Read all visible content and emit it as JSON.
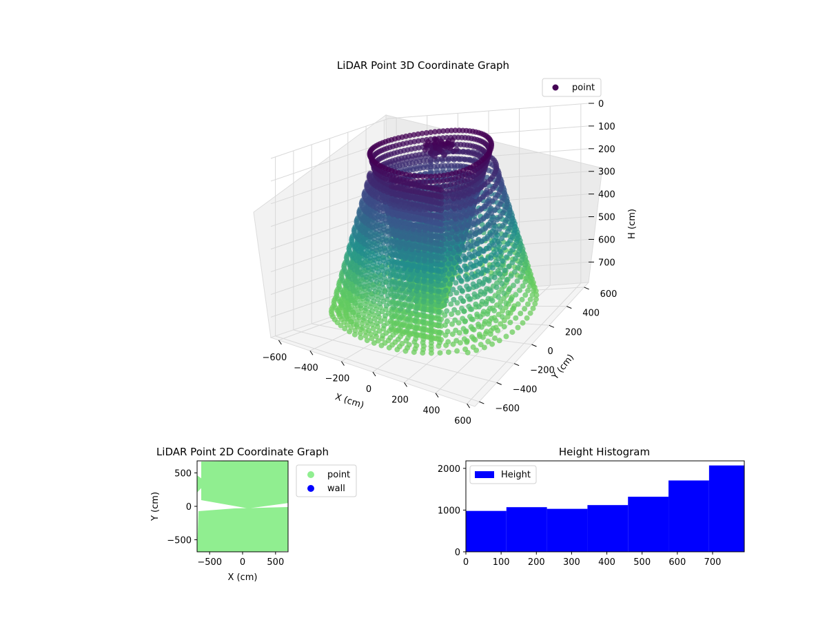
{
  "chart_data": [
    {
      "type": "scatter",
      "title": "LiDAR Point 3D Coordinate Graph",
      "xlabel": "X (cm)",
      "ylabel": "Y (cm)",
      "zlabel": "H (cm)",
      "xlim": [
        -650,
        650
      ],
      "ylim": [
        -650,
        650
      ],
      "zlim": [
        0,
        790
      ],
      "x_ticks": [
        -600,
        -400,
        -200,
        0,
        200,
        400,
        600
      ],
      "y_ticks": [
        -600,
        -400,
        -200,
        0,
        200,
        400,
        600
      ],
      "z_ticks": [
        0,
        100,
        200,
        300,
        400,
        500,
        600,
        700
      ],
      "z_inverted": true,
      "grid": true,
      "colormap": "viridis",
      "legend_position": "top-right",
      "series": [
        {
          "name": "point",
          "color": "#440154"
        }
      ]
    },
    {
      "type": "scatter",
      "title": "LiDAR Point 2D Coordinate Graph",
      "xlabel": "X (cm)",
      "ylabel": "Y (cm)",
      "xlim": [
        -690,
        690
      ],
      "ylim": [
        -680,
        680
      ],
      "x_ticks": [
        -500,
        0,
        500
      ],
      "y_ticks": [
        -500,
        0,
        500
      ],
      "legend_position": "outside-right",
      "series": [
        {
          "name": "point",
          "color": "#90ee90"
        },
        {
          "name": "wall",
          "color": "#0000ff"
        }
      ]
    },
    {
      "type": "bar",
      "title": "Height Histogram",
      "xlabel": "",
      "ylabel": "",
      "xlim": [
        0,
        790
      ],
      "ylim": [
        0,
        2180
      ],
      "x_ticks": [
        0,
        100,
        200,
        300,
        400,
        500,
        600,
        700
      ],
      "y_ticks": [
        0,
        1000,
        2000
      ],
      "bin_edges": [
        0,
        115,
        230,
        345,
        460,
        575,
        690,
        790
      ],
      "series": [
        {
          "name": "Height",
          "color": "#0000ff",
          "values": [
            980,
            1070,
            1030,
            1120,
            1320,
            1710,
            2070
          ]
        }
      ],
      "legend_position": "top-left"
    }
  ]
}
